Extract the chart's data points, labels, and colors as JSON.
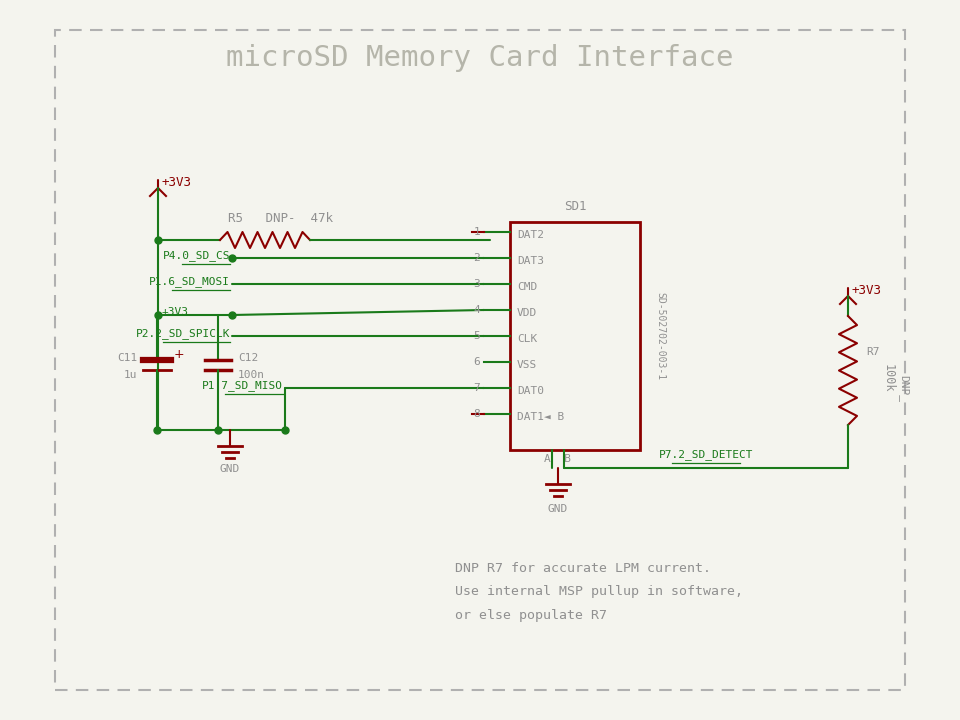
{
  "title": "microSD Memory Card Interface",
  "bg_color": "#f4f4ee",
  "wire_color": "#1a7a1a",
  "comp_color": "#8b0000",
  "text_color": "#909090",
  "note_lines": [
    "DNP R7 for accurate LPM current.",
    "Use internal MSP pullup in software,",
    "or else populate R7"
  ],
  "pin_names": [
    "DAT2",
    "DAT3",
    "CMD",
    "VDD",
    "CLK",
    "VSS",
    "DAT0",
    "DAT1◄ B"
  ]
}
